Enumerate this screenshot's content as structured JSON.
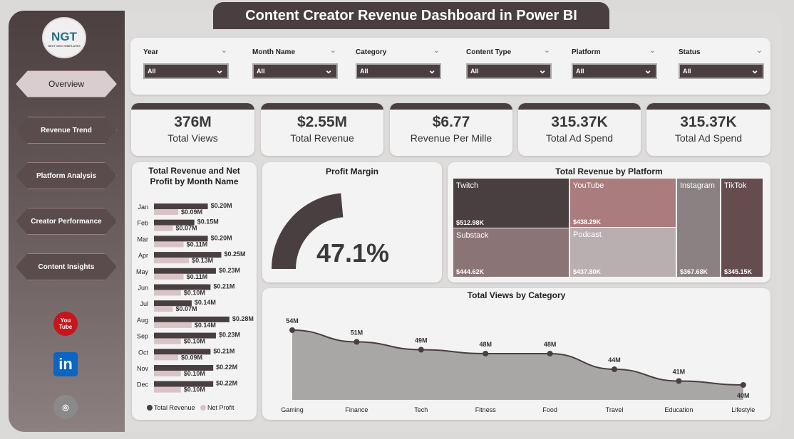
{
  "title": "Content Creator Revenue Dashboard in Power BI",
  "logo": {
    "text": "NGT",
    "sub": "NEXT GEN TEMPLATES"
  },
  "nav": [
    {
      "label": "Overview",
      "active": true
    },
    {
      "label": "Revenue Trend"
    },
    {
      "label": "Platform Analysis"
    },
    {
      "label": "Creator Performance"
    },
    {
      "label": "Content Insights"
    }
  ],
  "social": [
    {
      "icon": "youtube-icon",
      "text": "You Tube",
      "color": "#c4161c"
    },
    {
      "icon": "linkedin-icon",
      "text": "in",
      "color": "#0a66c2"
    },
    {
      "icon": "globe-icon",
      "text": "◎",
      "color": "#8a8a8a"
    }
  ],
  "filters": [
    {
      "label": "Year",
      "value": "All"
    },
    {
      "label": "Month Name",
      "value": "All"
    },
    {
      "label": "Category",
      "value": "All"
    },
    {
      "label": "Content Type",
      "value": "All"
    },
    {
      "label": "Platform",
      "value": "All"
    },
    {
      "label": "Status",
      "value": "All"
    }
  ],
  "kpis": [
    {
      "value": "376M",
      "label": "Total Views"
    },
    {
      "value": "$2.55M",
      "label": "Total Revenue"
    },
    {
      "value": "$6.77",
      "label": "Revenue Per Mille"
    },
    {
      "value": "315.37K",
      "label": "Total Ad Spend"
    },
    {
      "value": "315.37K",
      "label": "Total Ad Spend"
    }
  ],
  "colors": {
    "dark": "#4a3f40",
    "light": "#d8c4c6"
  },
  "chart_data": [
    {
      "type": "bar",
      "orientation": "horizontal",
      "title": "Total Revenue and Net Profit by Month Name",
      "categories": [
        "Jan",
        "Feb",
        "Mar",
        "Apr",
        "May",
        "Jun",
        "Jul",
        "Aug",
        "Sep",
        "Oct",
        "Nov",
        "Dec"
      ],
      "series": [
        {
          "name": "Total Revenue",
          "color": "#4a3f40",
          "values": [
            0.2,
            0.15,
            0.2,
            0.25,
            0.23,
            0.21,
            0.14,
            0.28,
            0.23,
            0.21,
            0.22,
            0.22
          ],
          "labels": [
            "$0.20M",
            "$0.15M",
            "$0.20M",
            "$0.25M",
            "$0.23M",
            "$0.21M",
            "$0.14M",
            "$0.28M",
            "$0.23M",
            "$0.21M",
            "$0.22M",
            "$0.22M"
          ]
        },
        {
          "name": "Net Profit",
          "color": "#d8c4c6",
          "values": [
            0.09,
            0.07,
            0.11,
            0.13,
            0.11,
            0.1,
            0.07,
            0.14,
            0.1,
            0.09,
            0.1,
            0.1
          ],
          "labels": [
            "$0.09M",
            "$0.07M",
            "$0.11M",
            "$0.13M",
            "$0.11M",
            "$0.10M",
            "$0.07M",
            "$0.14M",
            "$0.10M",
            "$0.09M",
            "$0.10M",
            "$0.10M"
          ]
        }
      ],
      "legend": "bottom"
    },
    {
      "type": "gauge",
      "title": "Profit Margin",
      "value": 47.1,
      "label": "47.1%"
    },
    {
      "type": "treemap",
      "title": "Total Revenue by Platform",
      "items": [
        {
          "name": "Twitch",
          "value": 512.98,
          "label": "$512.98K",
          "color": "#4a3f40"
        },
        {
          "name": "Substack",
          "value": 444.62,
          "label": "$444.62K",
          "color": "#8a7476"
        },
        {
          "name": "YouTube",
          "value": 438.29,
          "label": "$438.29K",
          "color": "#ab7c7e"
        },
        {
          "name": "Podcast",
          "value": 437.8,
          "label": "$437.80K",
          "color": "#b9afb0"
        },
        {
          "name": "Instagram",
          "value": 367.68,
          "label": "$367.68K",
          "color": "#8b8183"
        },
        {
          "name": "TikTok",
          "value": 345.15,
          "label": "$345.15K",
          "color": "#654d4f"
        }
      ]
    },
    {
      "type": "area",
      "title": "Total Views by Category",
      "categories": [
        "Gaming",
        "Finance",
        "Tech",
        "Fitness",
        "Food",
        "Travel",
        "Education",
        "Lifestyle"
      ],
      "values": [
        54,
        51,
        49,
        48,
        48,
        44,
        41,
        40
      ],
      "labels": [
        "54M",
        "51M",
        "49M",
        "48M",
        "48M",
        "44M",
        "41M",
        "40M"
      ],
      "color": "#4a3f40",
      "fill": "#a9a6a6"
    }
  ]
}
